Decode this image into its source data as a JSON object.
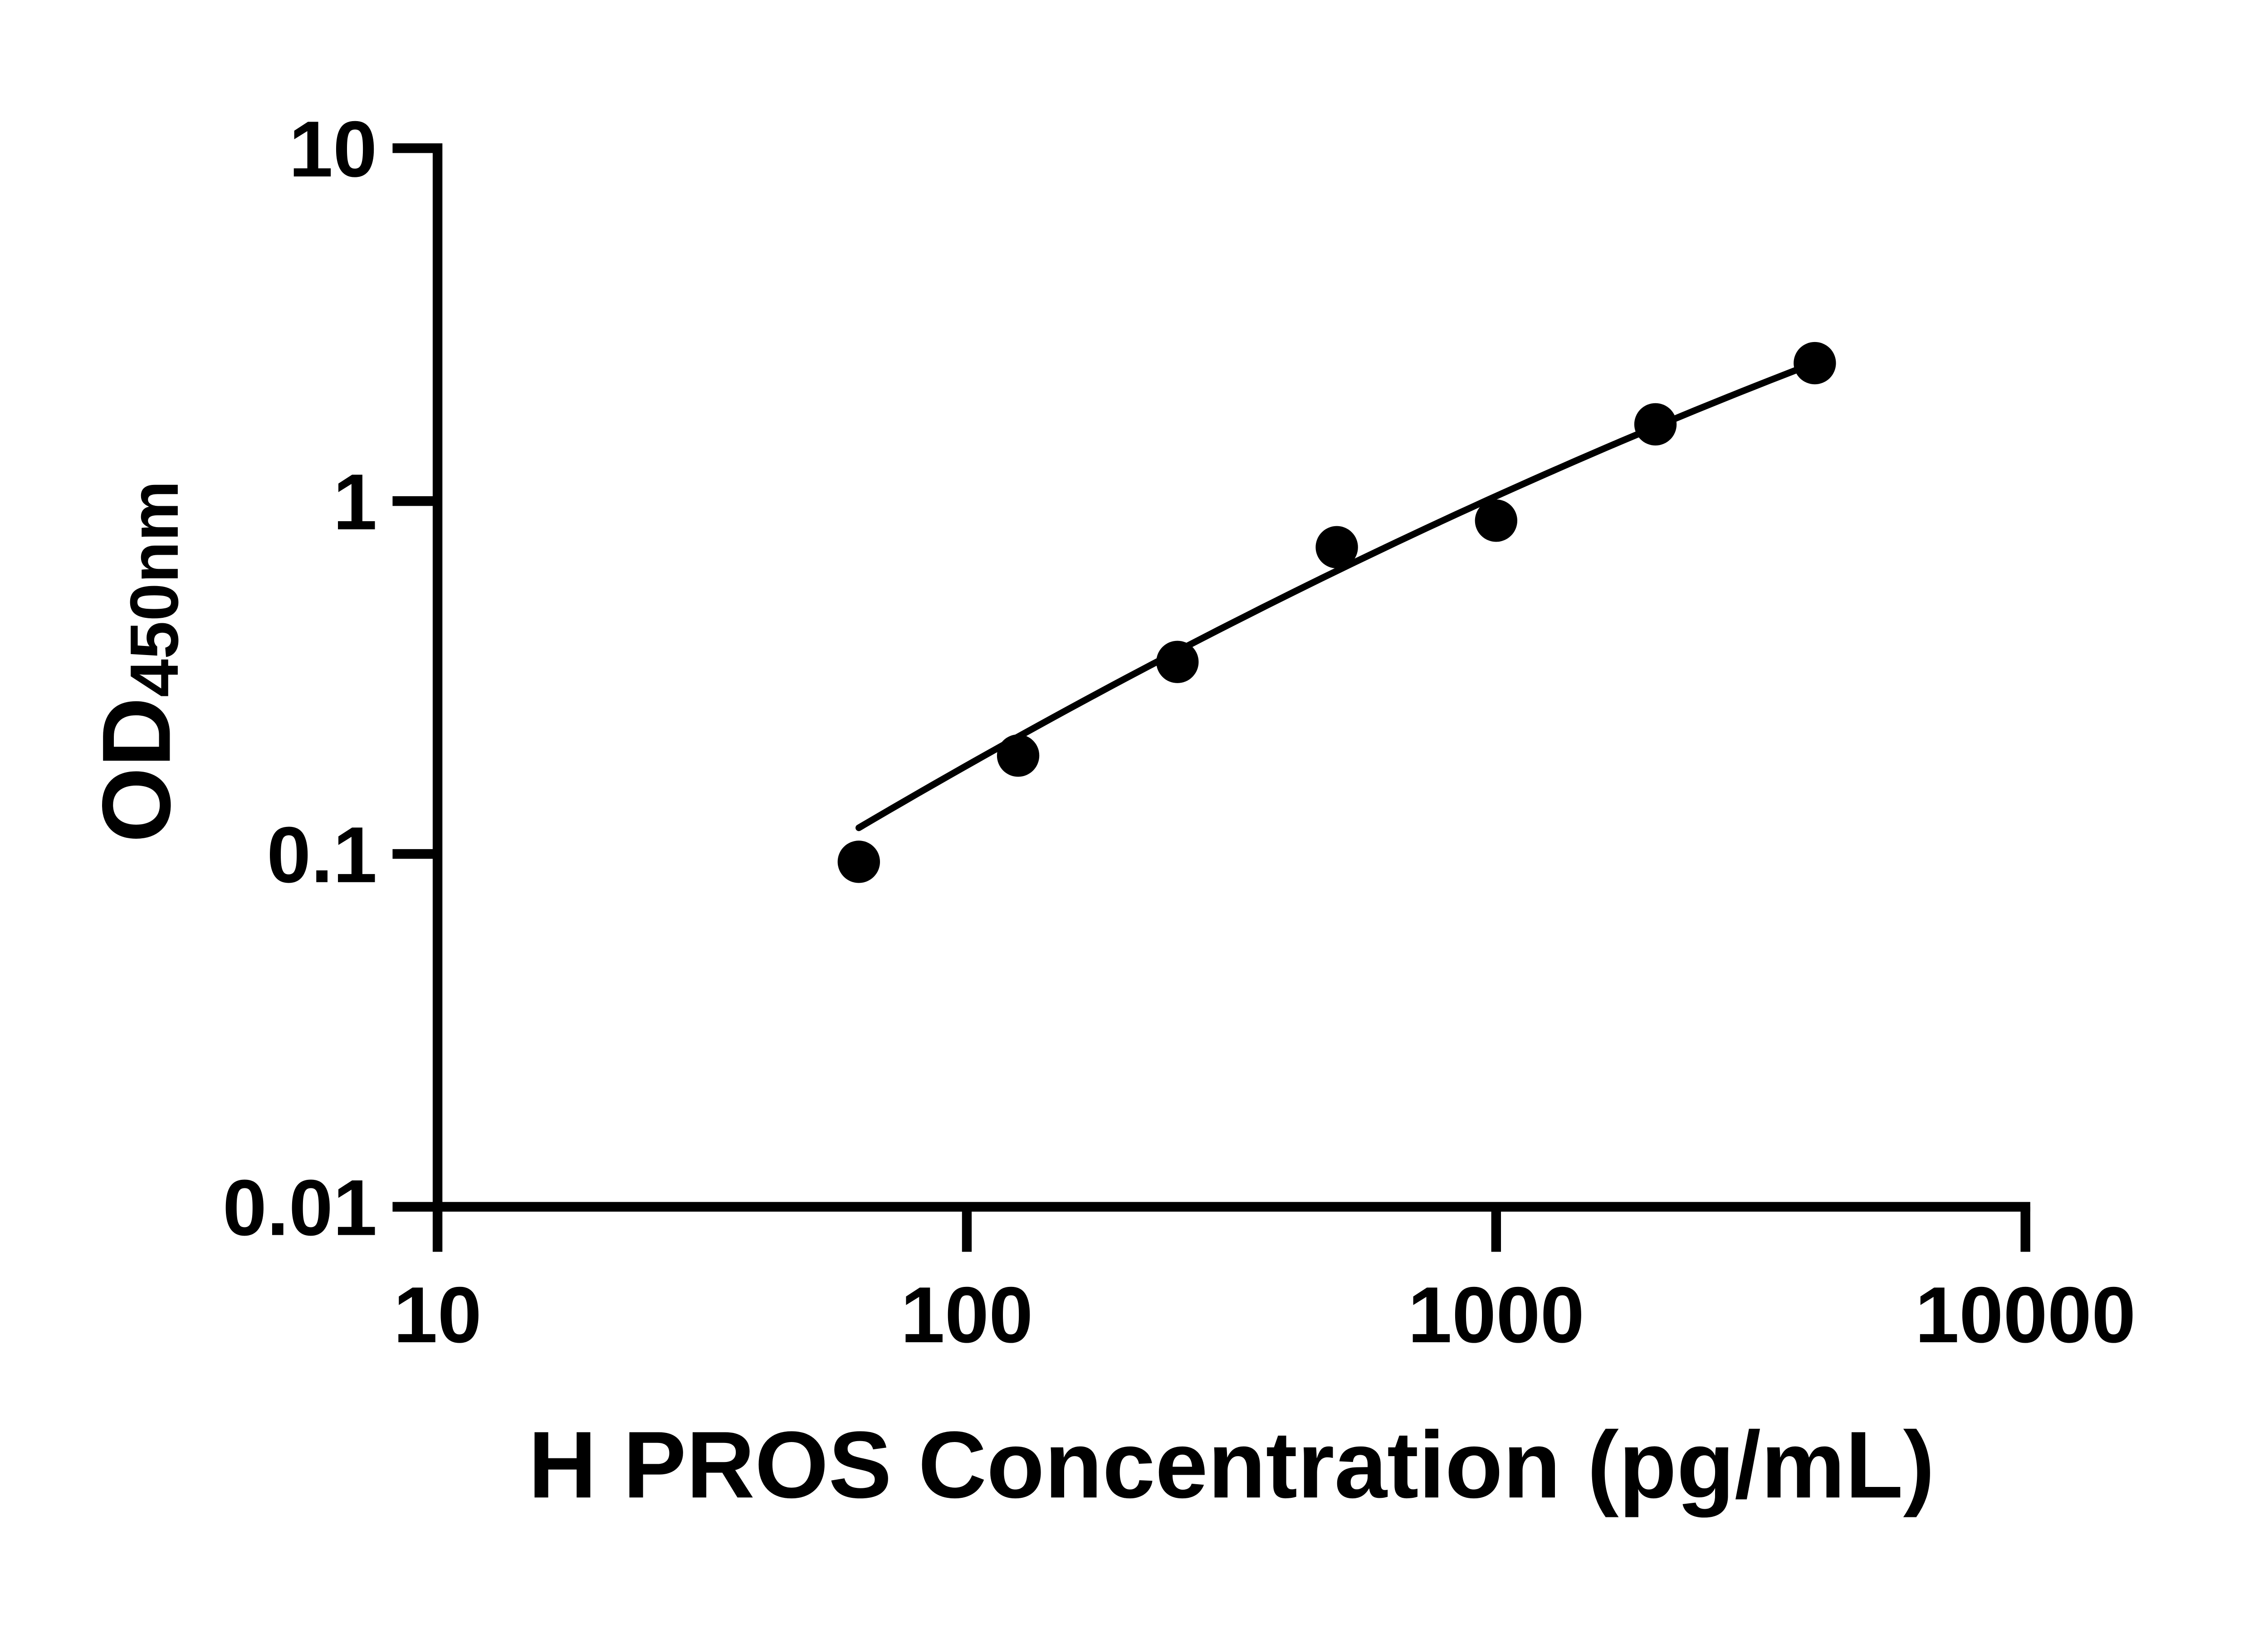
{
  "figure": {
    "background": "#ffffff",
    "ink": "#000000"
  },
  "chart_data": {
    "type": "scatter",
    "title": "",
    "xlabel": "H PROS Concentration (pg/mL)",
    "ylabel_main": "OD",
    "ylabel_sub": "450nm",
    "x_scale": "log",
    "y_scale": "log",
    "xlim": [
      10,
      10000
    ],
    "ylim": [
      0.01,
      10
    ],
    "x_ticks": [
      "10",
      "100",
      "1000",
      "10000"
    ],
    "y_ticks": [
      "10",
      "1",
      "0.1",
      "0.01"
    ],
    "grid": false,
    "legend": "none",
    "marker": {
      "shape": "circle",
      "color": "#000000",
      "radius_px": 48
    },
    "points": [
      {
        "x": 62.5,
        "y": 0.095
      },
      {
        "x": 125,
        "y": 0.19
      },
      {
        "x": 250,
        "y": 0.35
      },
      {
        "x": 500,
        "y": 0.74
      },
      {
        "x": 1000,
        "y": 0.88
      },
      {
        "x": 2000,
        "y": 1.65
      },
      {
        "x": 4000,
        "y": 2.46
      }
    ],
    "fit_curve": {
      "model": "quadratic_in_log10",
      "x_start": 62.5,
      "x_end": 4000,
      "a": -0.926,
      "b": 0.883,
      "c": -0.085
    }
  }
}
